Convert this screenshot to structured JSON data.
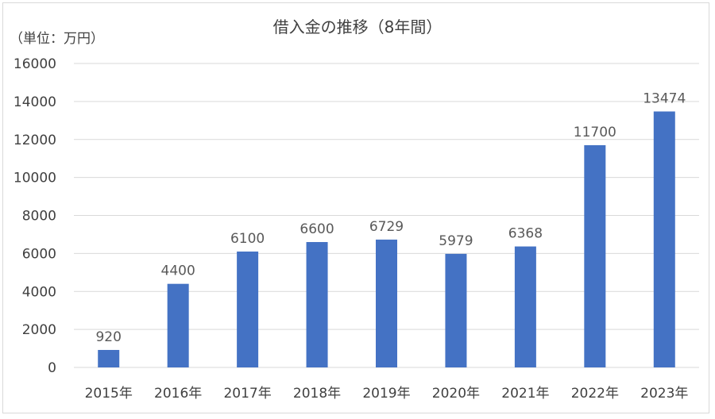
{
  "chart_data": {
    "type": "bar",
    "title": "借入金の推移（8年間）",
    "unit_label": "（単位：万円）",
    "categories": [
      "2015年",
      "2016年",
      "2017年",
      "2018年",
      "2019年",
      "2020年",
      "2021年",
      "2022年",
      "2023年"
    ],
    "values": [
      920,
      4400,
      6100,
      6600,
      6729,
      5979,
      6368,
      11700,
      13474
    ],
    "data_labels": [
      "920",
      "4400",
      "6100",
      "6600",
      "6729",
      "5979",
      "6368",
      "11700",
      "13474"
    ],
    "ylim": [
      0,
      16000
    ],
    "yticks": [
      "0",
      "2000",
      "4000",
      "6000",
      "8000",
      "10000",
      "12000",
      "14000",
      "16000"
    ],
    "grid": true,
    "bar_color": "#4472c4",
    "grid_color": "#d9d9d9"
  }
}
